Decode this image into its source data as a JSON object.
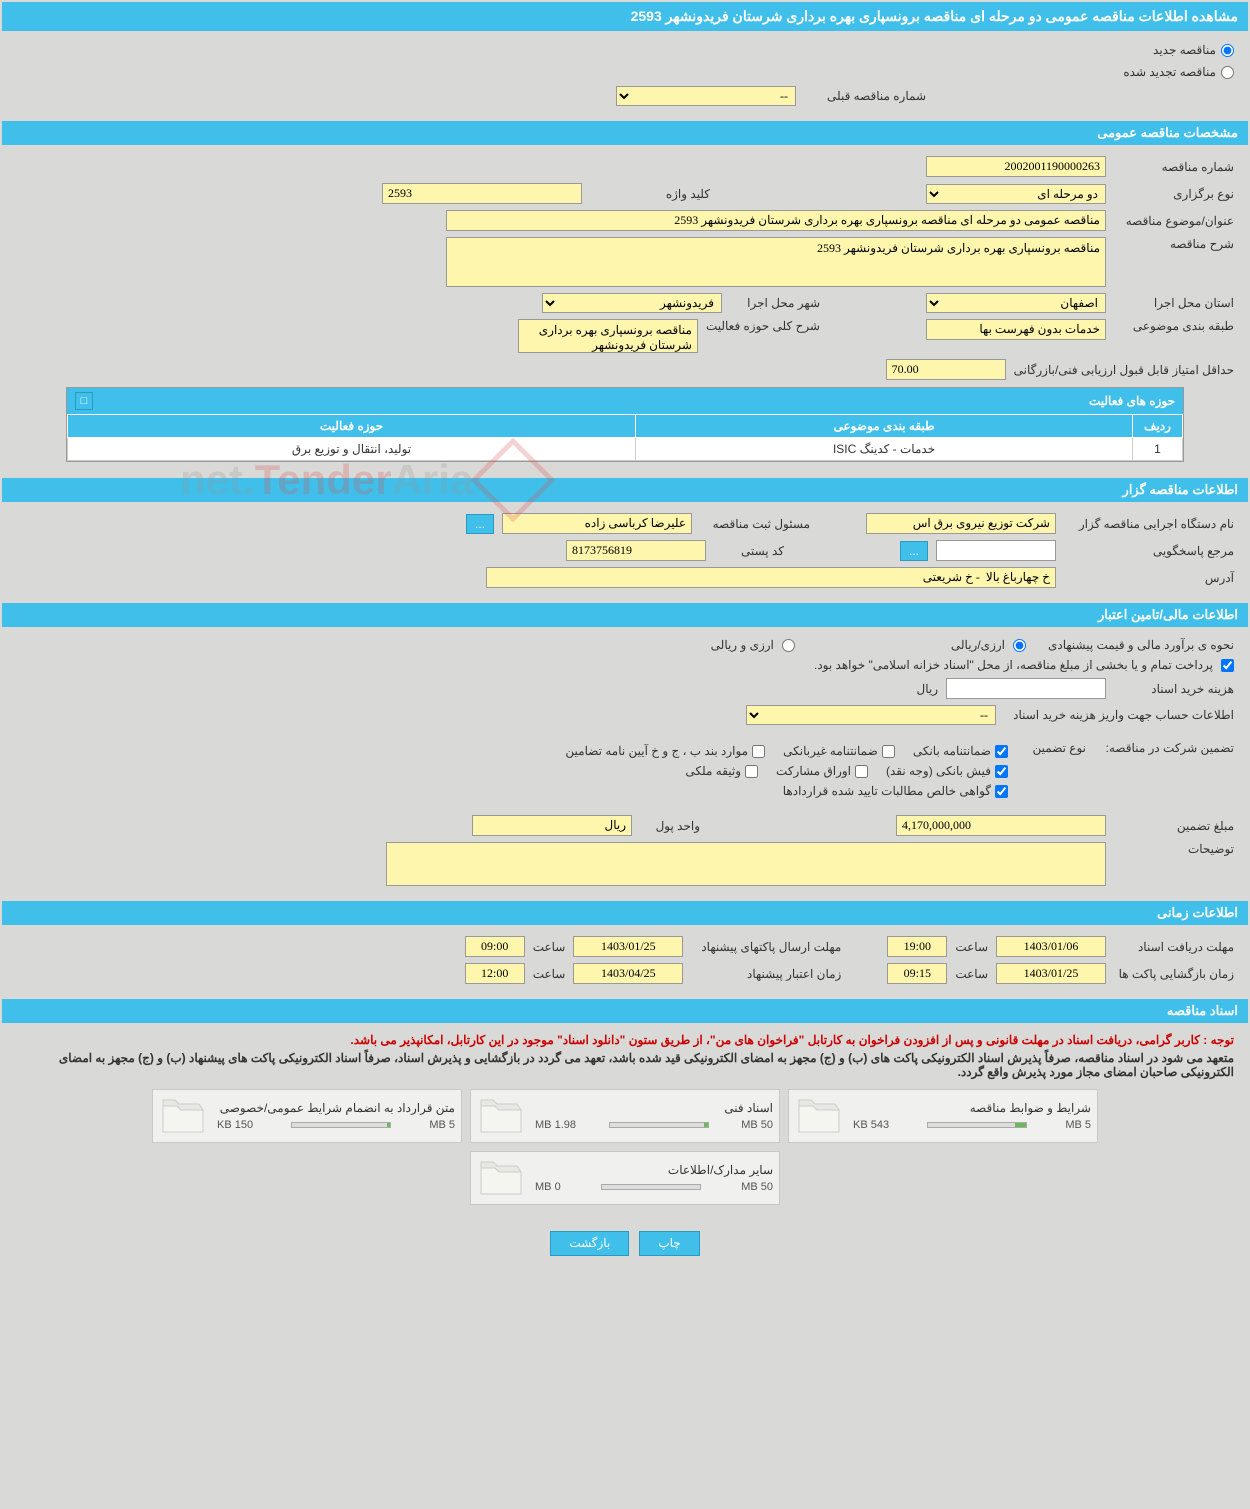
{
  "page_title": "مشاهده اطلاعات مناقصه عمومی دو مرحله ای مناقصه برونسپاری بهره برداری شرستان فریدونشهر 2593",
  "radio_options": {
    "new_tender": "مناقصه جدید",
    "renewed_tender": "مناقصه تجدید شده"
  },
  "prev_tender_label": "شماره مناقصه قبلی",
  "prev_tender_value": "--",
  "sections": {
    "general_spec": "مشخصات مناقصه عمومی",
    "organizer_info": "اطلاعات مناقصه گزار",
    "financial_info": "اطلاعات مالی/تامین اعتبار",
    "time_info": "اطلاعات زمانی",
    "docs": "اسناد مناقصه"
  },
  "general": {
    "tender_no_label": "شماره مناقصه",
    "tender_no": "2002001190000263",
    "type_label": "نوع برگزاری",
    "type_value": "دو مرحله ای",
    "keyword_label": "کلید واژه",
    "keyword": "2593",
    "subject_label": "عنوان/موضوع مناقصه",
    "subject": "مناقصه عمومی دو مرحله ای مناقصه برونسپاری بهره برداری شرستان فریدونشهر 2593",
    "desc_label": "شرح مناقصه",
    "desc": "مناقصه برونسپاری بهره برداری شرستان فریدونشهر 2593",
    "province_label": "استان محل اجرا",
    "province": "اصفهان",
    "city_label": "شهر محل اجرا",
    "city": "فریدونشهر",
    "category_label": "طبقه بندی موضوعی",
    "category": "خدمات بدون فهرست بها",
    "activity_desc_label": "شرح کلی حوزه فعالیت",
    "activity_desc": "مناقصه برونسپاری بهره برداری شرستان فریدونشهر",
    "min_score_label": "حداقل امتیاز قابل قبول ارزیابی فنی/بازرگانی",
    "min_score": "70.00"
  },
  "activity_table": {
    "title": "حوزه های فعالیت",
    "collapse": "□",
    "cols": {
      "row": "ردیف",
      "category": "طبقه بندی موضوعی",
      "activity": "حوزه فعالیت"
    },
    "rows": [
      {
        "row": "1",
        "category": "خدمات - کدینگ ISIC",
        "activity": "تولید، انتقال و توزیع برق"
      }
    ]
  },
  "organizer": {
    "org_label": "نام دستگاه اجرایی مناقصه گزار",
    "org": "شرکت توزیع نیروی برق اس",
    "person_label": "مسئول ثبت مناقصه",
    "person": "علیرضا کرباسی زاده",
    "contact_label": "مرجع پاسخگویی",
    "postal_label": "کد پستی",
    "postal": "8173756819",
    "address_label": "آدرس",
    "address": "خ چهارباغ بالا  - خ شریعتی",
    "more_btn": "..."
  },
  "financial": {
    "method_label": "نحوه ی برآورد مالی و قیمت پیشنهادی",
    "rls_opt": "ارزی/ریالی",
    "fx_opt": "ارزی و ریالی",
    "note1": "پرداخت تمام و یا بخشی از مبلغ مناقصه، از محل \"اسناد خزانه اسلامی\" خواهد بود.",
    "cost_label": "هزینه خرید اسناد",
    "cost_unit": "ریال",
    "account_label": "اطلاعات حساب جهت واریز هزینه خرید اسناد",
    "account_value": "--",
    "guarantee_label": "تضمین شرکت در مناقصه:",
    "guarantee_type_label": "نوع تضمین",
    "guarantees": {
      "bank_guarantee": "ضمانتنامه بانکی",
      "nonbank_guarantee": "ضمانتنامه غیربانکی",
      "items_bpj": "موارد بند ب ، ج و خ آیین نامه تضامین",
      "bank_receipt": "فیش بانکی (وجه نقد)",
      "participation": "اوراق مشارکت",
      "property": "وثیقه ملکی",
      "contract_cert": "گواهی خالص مطالبات تایید شده قراردادها"
    },
    "guarantee_amount_label": "مبلغ تضمین",
    "guarantee_amount": "4,170,000,000",
    "currency_label": "واحد پول",
    "currency": "ریال",
    "remarks_label": "توضیحات"
  },
  "time": {
    "doc_deadline_label": "مهلت دریافت اسناد",
    "doc_deadline_date": "1403/01/06",
    "doc_deadline_time_label": "ساعت",
    "doc_deadline_time": "19:00",
    "envelope_label": "مهلت ارسال پاکتهای پیشنهاد",
    "envelope_date": "1403/01/25",
    "envelope_time": "09:00",
    "opening_label": "زمان بازگشایی پاکت ها",
    "opening_date": "1403/01/25",
    "opening_time": "09:15",
    "validity_label": "زمان اعتبار پیشنهاد",
    "validity_date": "1403/04/25",
    "validity_time": "12:00"
  },
  "docs_section": {
    "note_red": "توجه : کاربر گرامی، دریافت اسناد در مهلت قانونی و پس از افزودن فراخوان به کارتابل \"فراخوان های من\"، از طریق ستون \"دانلود اسناد\" موجود در این کارتابل، امکانپذیر می باشد.",
    "note_black": "متعهد می شود در اسناد مناقصه، صرفاً پذیرش اسناد الکترونیکی پاکت های (ب) و (ج) مجهز به امضای الکترونیکی قید شده باشد، تعهد می گردد در بازگشایی و پذیرش اسناد، صرفاً اسناد الکترونیکی پاکت های پیشنهاد (ب) و (ج) مجهز به امضای الکترونیکی صاحبان امضای مجاز مورد پذیرش واقع گردد.",
    "files": [
      {
        "name": "شرایط و ضوابط مناقصه",
        "used": "543 KB",
        "total": "5 MB",
        "pct": 11
      },
      {
        "name": "اسناد فنی",
        "used": "1.98 MB",
        "total": "50 MB",
        "pct": 4
      },
      {
        "name": "متن قرارداد به انضمام شرایط عمومی/خصوصی",
        "used": "150 KB",
        "total": "5 MB",
        "pct": 3
      },
      {
        "name": "سایر مدارک/اطلاعات",
        "used": "0 MB",
        "total": "50 MB",
        "pct": 0
      }
    ]
  },
  "buttons": {
    "print": "چاپ",
    "back": "بازگشت"
  },
  "watermark": {
    "t1": "Aria",
    "t2": "Tender",
    "t3": ".net"
  },
  "colors": {
    "header": "#3fbfea",
    "input_bg": "#fef6ac",
    "page_bg": "#d9d9d7"
  }
}
